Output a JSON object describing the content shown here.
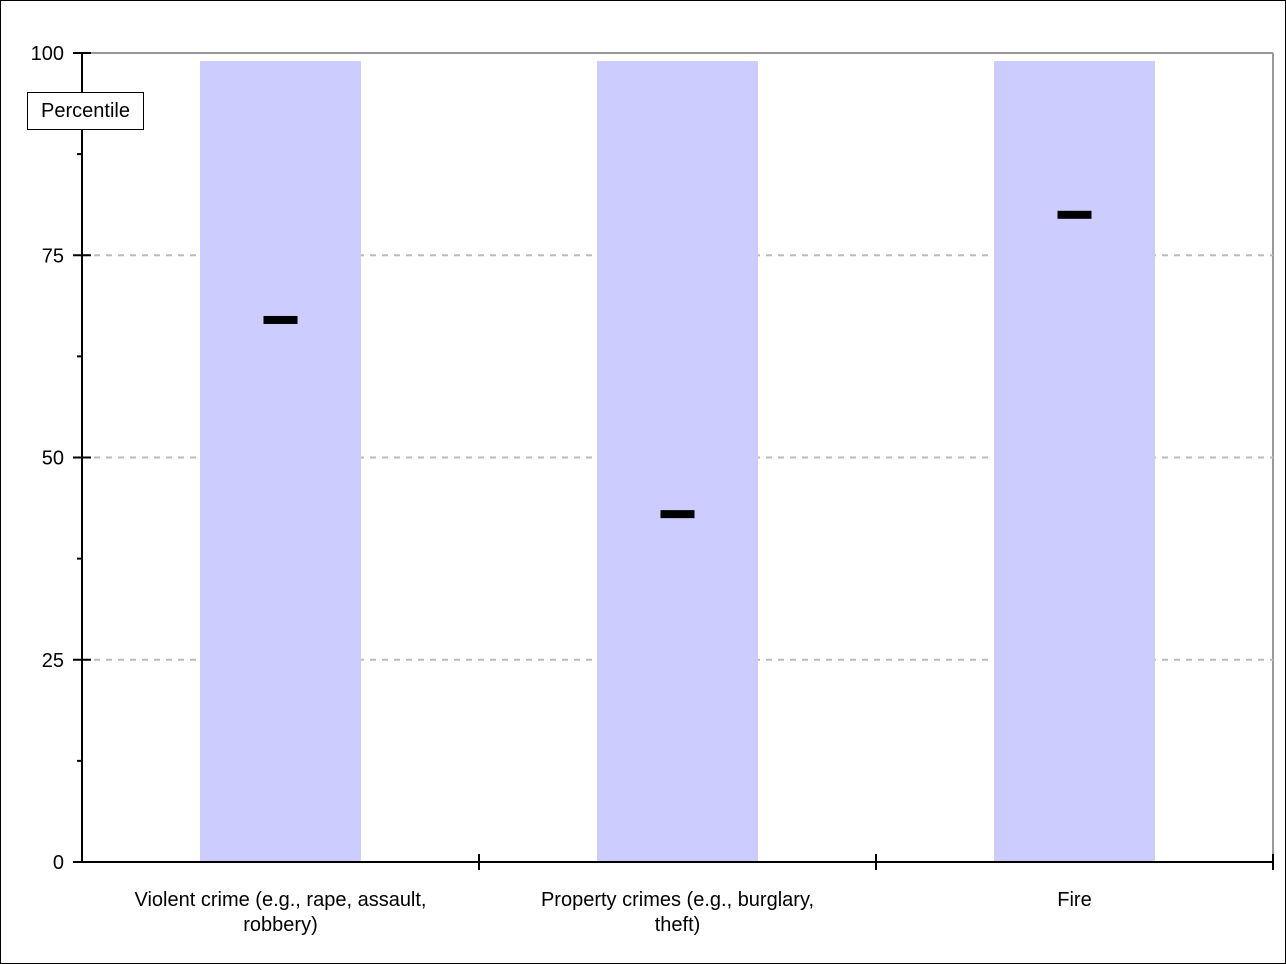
{
  "chart_data": {
    "type": "bar",
    "ylabel": "Percentile",
    "ylim": [
      0,
      100
    ],
    "yticks": [
      0,
      25,
      50,
      75,
      100
    ],
    "grid": "horizontal dashed",
    "categories": [
      [
        "Violent crime (e.g., rape, assault,",
        "robbery)"
      ],
      [
        "Property crimes (e.g., burglary,",
        "theft)"
      ],
      [
        "Fire"
      ]
    ],
    "bar_values": [
      99,
      99,
      99
    ],
    "marker_values": [
      67,
      43,
      80
    ],
    "colors": {
      "bar": "#ccccff",
      "marker": "#000000",
      "grid": "#bbbbbb"
    }
  }
}
